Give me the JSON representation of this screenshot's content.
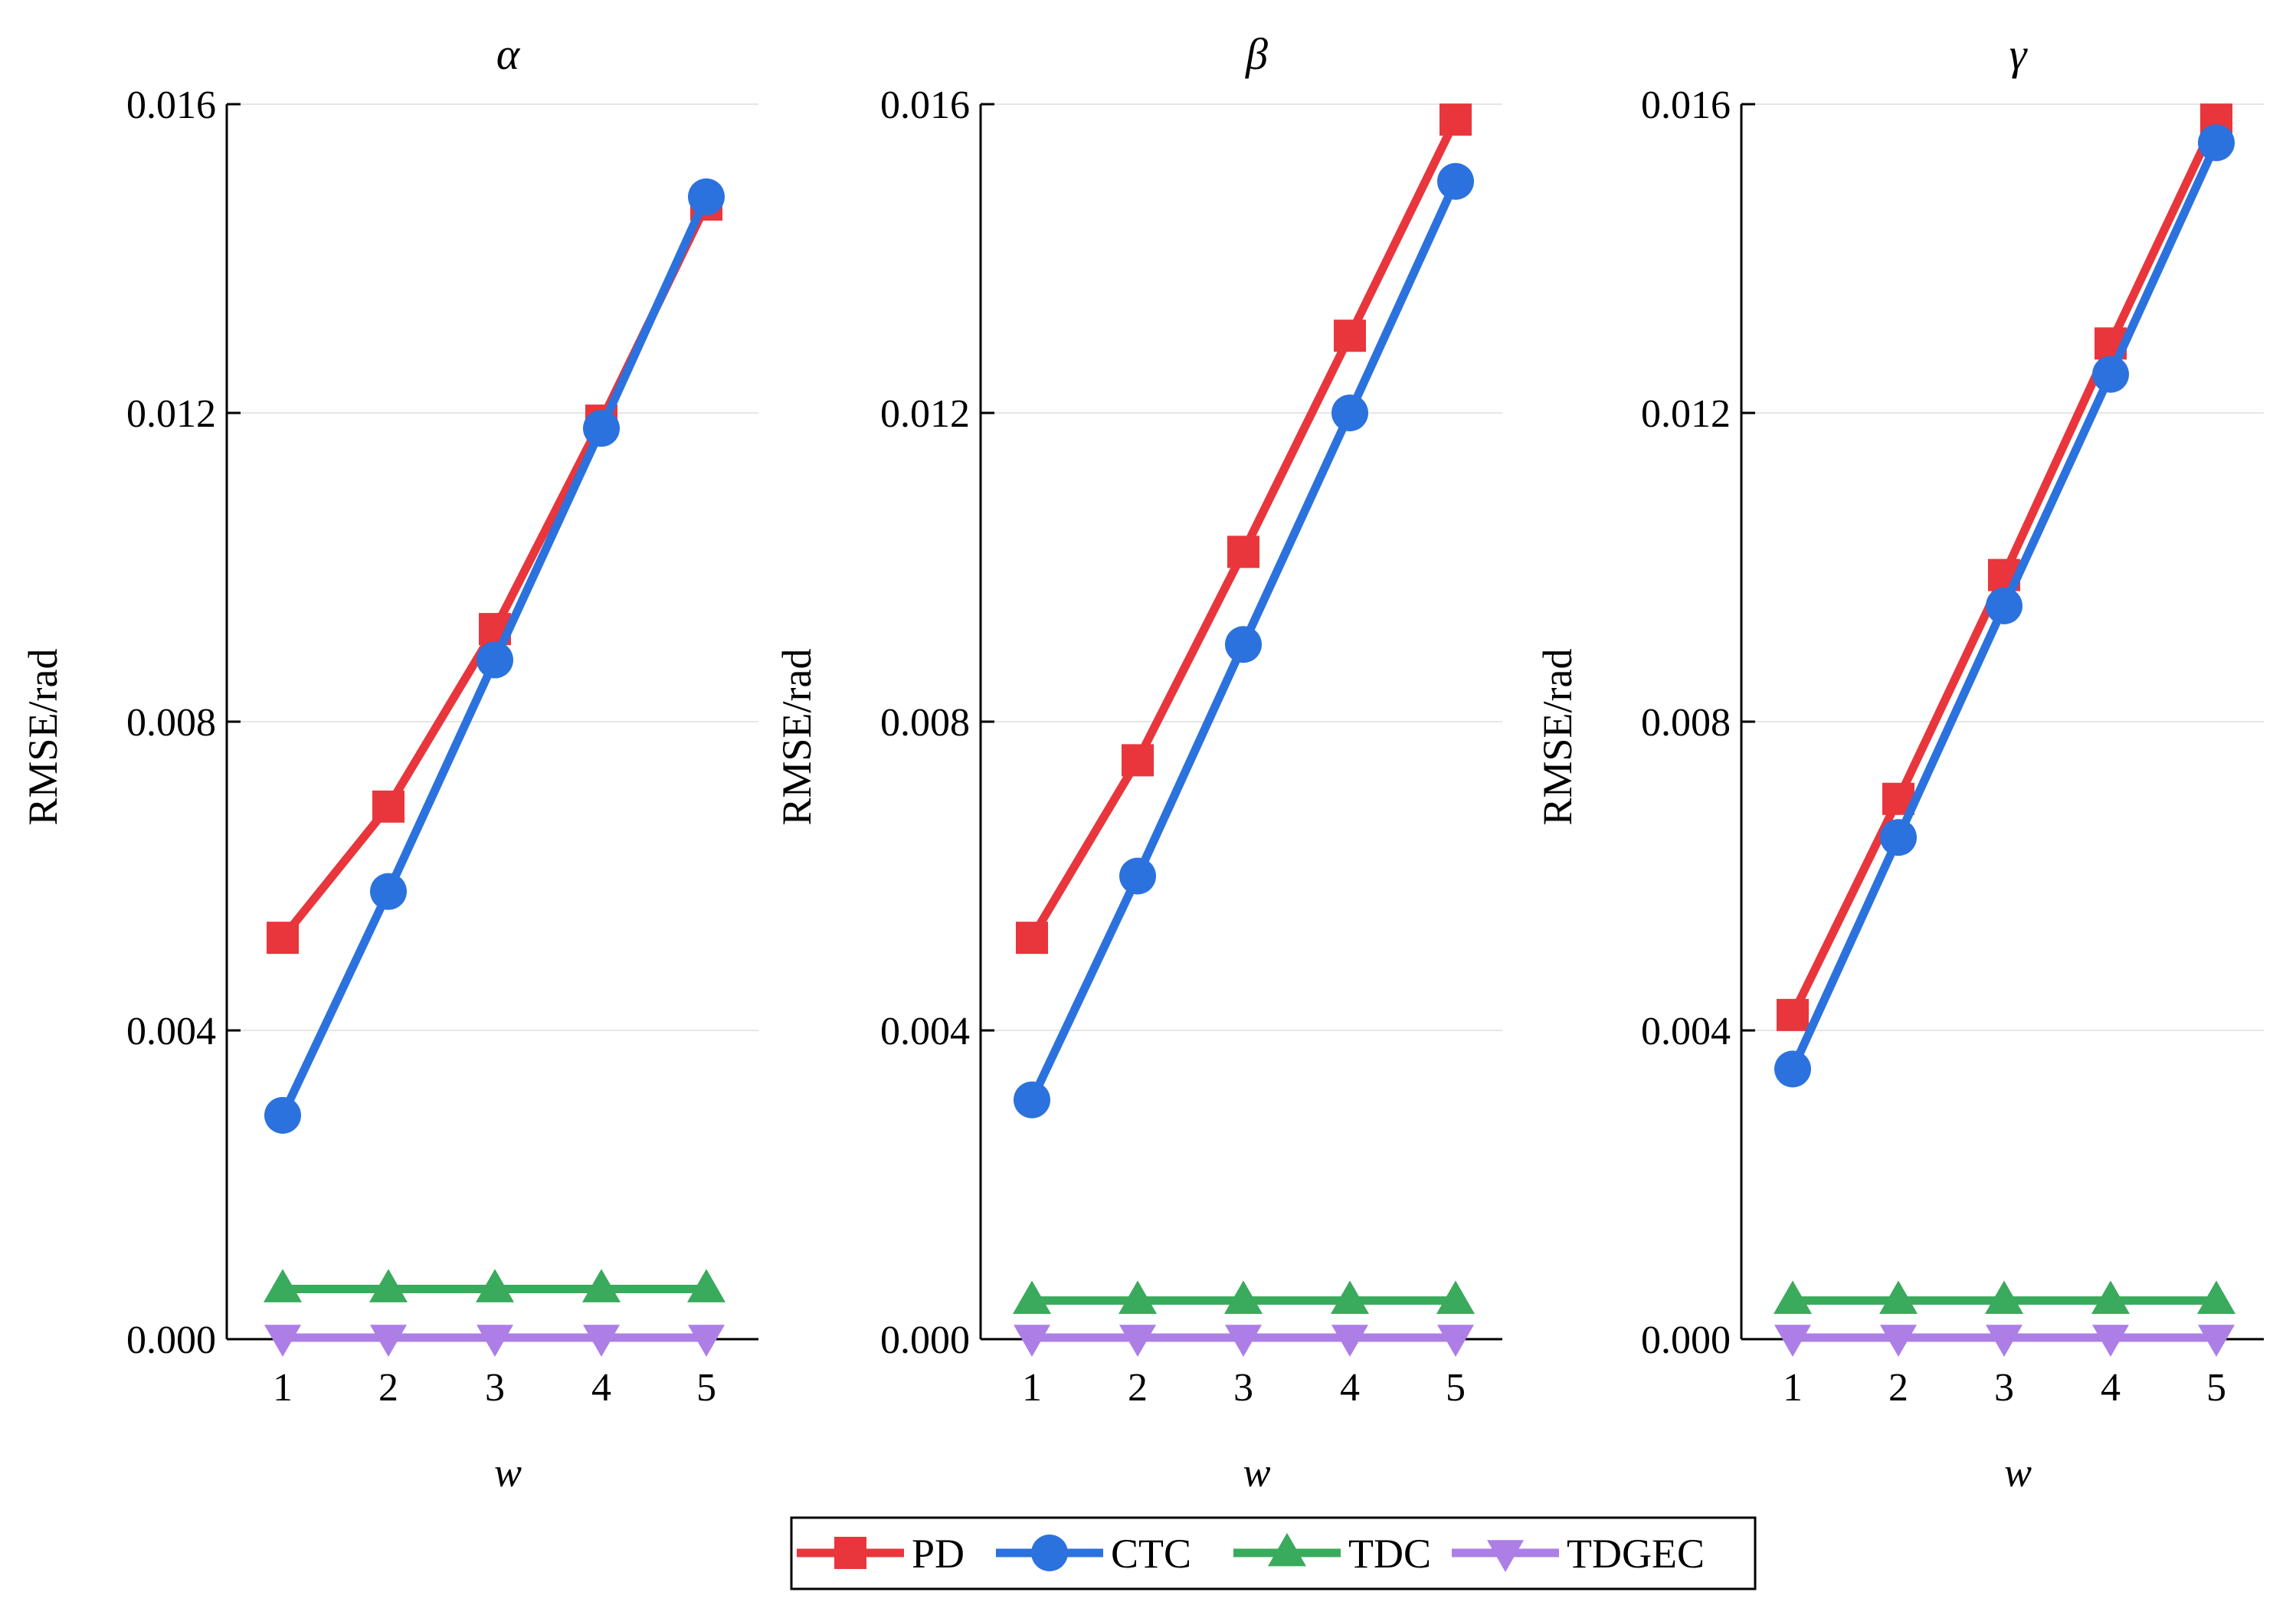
{
  "chart_data": [
    {
      "type": "line",
      "title": "α",
      "xlabel": "w",
      "ylabel": "RMSE/rad",
      "categories": [
        1,
        2,
        3,
        4,
        5
      ],
      "ylim": [
        0,
        0.016
      ],
      "yticks": [
        "0.000",
        "0.004",
        "0.008",
        "0.012",
        "0.016"
      ],
      "grid": true,
      "series": [
        {
          "name": "PD",
          "values": [
            0.0052,
            0.0069,
            0.0092,
            0.0119,
            0.0147
          ]
        },
        {
          "name": "CTC",
          "values": [
            0.0029,
            0.0058,
            0.0088,
            0.0118,
            0.0148
          ]
        },
        {
          "name": "TDC",
          "values": [
            0.00065,
            0.00065,
            0.00065,
            0.00065,
            0.00065
          ]
        },
        {
          "name": "TDGEC",
          "values": [
            2e-05,
            2e-05,
            2e-05,
            2e-05,
            2e-05
          ]
        }
      ]
    },
    {
      "type": "line",
      "title": "β",
      "xlabel": "w",
      "ylabel": "RMSE/rad",
      "categories": [
        1,
        2,
        3,
        4,
        5
      ],
      "ylim": [
        0,
        0.016
      ],
      "yticks": [
        "0.000",
        "0.004",
        "0.008",
        "0.012",
        "0.016"
      ],
      "grid": true,
      "series": [
        {
          "name": "PD",
          "values": [
            0.0052,
            0.0075,
            0.0102,
            0.013,
            0.0158
          ]
        },
        {
          "name": "CTC",
          "values": [
            0.0031,
            0.006,
            0.009,
            0.012,
            0.015
          ]
        },
        {
          "name": "TDC",
          "values": [
            0.0005,
            0.0005,
            0.0005,
            0.0005,
            0.0005
          ]
        },
        {
          "name": "TDGEC",
          "values": [
            2e-05,
            2e-05,
            2e-05,
            2e-05,
            2e-05
          ]
        }
      ]
    },
    {
      "type": "line",
      "title": "γ",
      "xlabel": "w",
      "ylabel": "RMSE/rad",
      "categories": [
        1,
        2,
        3,
        4,
        5
      ],
      "ylim": [
        0,
        0.016
      ],
      "yticks": [
        "0.000",
        "0.004",
        "0.008",
        "0.012",
        "0.016"
      ],
      "grid": true,
      "series": [
        {
          "name": "PD",
          "values": [
            0.0042,
            0.007,
            0.0099,
            0.0129,
            0.0158
          ]
        },
        {
          "name": "CTC",
          "values": [
            0.0035,
            0.0065,
            0.0095,
            0.0125,
            0.0155
          ]
        },
        {
          "name": "TDC",
          "values": [
            0.0005,
            0.0005,
            0.0005,
            0.0005,
            0.0005
          ]
        },
        {
          "name": "TDGEC",
          "values": [
            2e-05,
            2e-05,
            2e-05,
            2e-05,
            2e-05
          ]
        }
      ]
    }
  ],
  "legend": {
    "position": "bottom-center",
    "entries": [
      {
        "name": "PD",
        "color": "#e8363c",
        "marker": "square"
      },
      {
        "name": "CTC",
        "color": "#2b72de",
        "marker": "circle"
      },
      {
        "name": "TDC",
        "color": "#3aaa5c",
        "marker": "triangle-up"
      },
      {
        "name": "TDGEC",
        "color": "#ad7ee6",
        "marker": "triangle-down"
      }
    ]
  }
}
